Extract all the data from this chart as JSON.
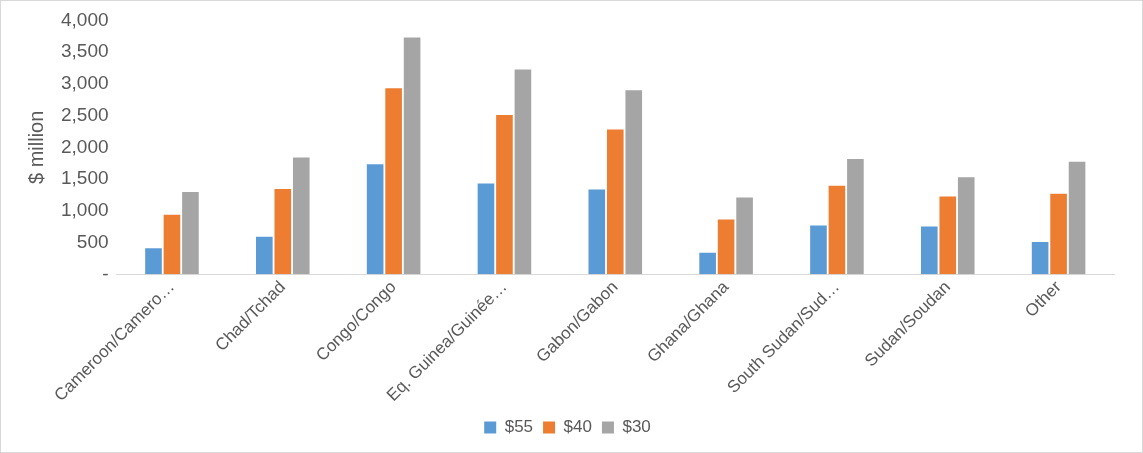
{
  "chart_data": {
    "type": "bar",
    "ylabel": "$ million",
    "categories": [
      "Cameroon/Camero…",
      "Chad/Tchad",
      "Congo/Congo",
      "Eq. Guinea/Guinée…",
      "Gabon/Gabon",
      "Ghana/Ghana",
      "South Sudan/Sud…",
      "Sudan/Soudan",
      "Other"
    ],
    "series": [
      {
        "name": "$55",
        "color": "#5b9bd5",
        "values": [
          410,
          590,
          1735,
          1430,
          1335,
          340,
          770,
          755,
          510
        ]
      },
      {
        "name": "$40",
        "color": "#ed7d31",
        "values": [
          940,
          1345,
          2930,
          2510,
          2280,
          865,
          1395,
          1225,
          1270
        ]
      },
      {
        "name": "$30",
        "color": "#a5a5a5",
        "values": [
          1295,
          1840,
          3730,
          3225,
          2900,
          1210,
          1815,
          1530,
          1775
        ]
      }
    ],
    "ylim": [
      0,
      4000
    ],
    "yticks": [
      {
        "value": 0,
        "label": "-"
      },
      {
        "value": 500,
        "label": "500"
      },
      {
        "value": 1000,
        "label": "1,000"
      },
      {
        "value": 1500,
        "label": "1,500"
      },
      {
        "value": 2000,
        "label": "2,000"
      },
      {
        "value": 2500,
        "label": "2,500"
      },
      {
        "value": 3000,
        "label": "3,000"
      },
      {
        "value": 3500,
        "label": "3,500"
      },
      {
        "value": 4000,
        "label": "4,000"
      }
    ],
    "grid": false,
    "legend": "bottom"
  }
}
